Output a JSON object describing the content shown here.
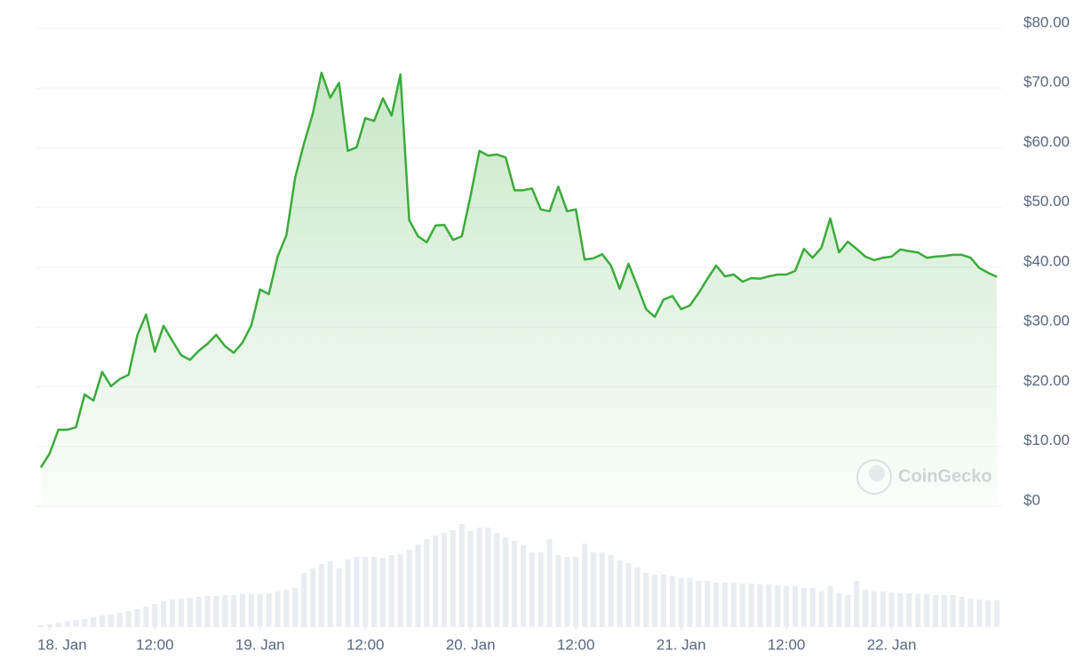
{
  "chart_data": {
    "type": "line",
    "watermark": "CoinGecko",
    "x": [
      -1,
      0,
      1,
      2,
      3,
      4,
      5,
      6,
      7,
      8,
      9,
      10,
      11,
      12,
      13,
      14,
      15,
      16,
      17,
      18,
      19,
      20,
      21,
      22,
      23,
      24,
      25,
      26,
      27,
      28,
      29,
      30,
      31,
      32,
      33,
      34,
      35,
      36,
      37,
      38,
      39,
      40,
      41,
      42,
      43,
      44,
      45,
      46,
      47,
      48,
      49,
      50,
      51,
      52,
      53,
      54,
      55,
      56,
      57,
      58,
      59,
      60,
      61,
      62,
      63,
      64,
      65,
      66,
      67,
      68,
      69,
      70,
      71,
      72,
      73,
      74,
      75,
      76,
      77,
      78,
      79,
      80,
      81,
      82,
      83,
      84,
      85,
      86,
      87,
      88,
      89,
      90,
      91,
      92,
      93,
      94,
      95,
      96,
      97,
      98,
      99,
      100,
      101,
      102,
      103,
      104,
      105,
      106,
      107,
      108
    ],
    "series": [
      {
        "name": "Price",
        "color": "#3bab3b",
        "values": [
          6.5,
          8.8,
          12.8,
          12.8,
          13.2,
          18.7,
          17.7,
          22.5,
          20.1,
          21.3,
          22.0,
          28.6,
          32.1,
          25.9,
          30.2,
          27.7,
          25.3,
          24.5,
          26.0,
          27.2,
          28.7,
          26.8,
          25.7,
          27.4,
          30.3,
          36.3,
          35.5,
          41.8,
          45.4,
          55.0,
          60.7,
          65.7,
          72.6,
          68.4,
          70.9,
          59.5,
          60.1,
          65.0,
          64.5,
          68.3,
          65.4,
          72.3,
          47.9,
          45.2,
          44.2,
          47.0,
          47.1,
          44.6,
          45.2,
          52.0,
          59.5,
          58.7,
          58.9,
          58.4,
          52.9,
          52.9,
          53.2,
          49.7,
          49.4,
          53.5,
          49.4,
          49.7,
          41.3,
          41.5,
          42.2,
          40.3,
          36.4,
          40.6,
          36.9,
          33.0,
          31.7,
          34.6,
          35.2,
          33.0,
          33.6,
          35.7,
          38.1,
          40.3,
          38.5,
          38.8,
          37.6,
          38.2,
          38.1,
          38.5,
          38.8,
          38.8,
          39.4,
          43.1,
          41.6,
          43.3,
          48.2,
          42.5,
          44.3,
          43.1,
          41.8,
          41.2,
          41.6,
          41.8,
          43.0,
          42.7,
          42.5,
          41.6,
          41.8,
          41.9,
          42.1,
          42.1,
          41.6,
          39.9,
          39.1,
          38.4
        ]
      },
      {
        "name": "Volume",
        "color": "#e9ecf0",
        "axis": "volume",
        "values": [
          2,
          3,
          5,
          7,
          8,
          9,
          11,
          13,
          14,
          16,
          18,
          20,
          23,
          26,
          29,
          31,
          32,
          33,
          34,
          35,
          35,
          36,
          36,
          37,
          37,
          37,
          38,
          40,
          42,
          44,
          61,
          66,
          71,
          74,
          66,
          76,
          79,
          79,
          79,
          78,
          81,
          82,
          87,
          93,
          99,
          103,
          106,
          109,
          116,
          108,
          112,
          112,
          106,
          101,
          97,
          92,
          84,
          84,
          99,
          81,
          79,
          79,
          94,
          84,
          84,
          81,
          75,
          72,
          67,
          61,
          59,
          59,
          57,
          55,
          55,
          52,
          52,
          50,
          50,
          50,
          49,
          49,
          48,
          48,
          47,
          46,
          46,
          44,
          44,
          40,
          46,
          38,
          36,
          52,
          42,
          40,
          40,
          39,
          38,
          38,
          37,
          37,
          36,
          36,
          36,
          34,
          32,
          31,
          30,
          30
        ]
      }
    ],
    "xlim": [
      -1.6,
      108.6
    ],
    "xticks": [
      {
        "value": 0,
        "label": "18. Jan"
      },
      {
        "value": 12,
        "label": "12:00"
      },
      {
        "value": 24,
        "label": "19. Jan"
      },
      {
        "value": 36,
        "label": "12:00"
      },
      {
        "value": 48,
        "label": "20. Jan"
      },
      {
        "value": 60,
        "label": "12:00"
      },
      {
        "value": 72,
        "label": "21. Jan"
      },
      {
        "value": 84,
        "label": "12:00"
      },
      {
        "value": 96,
        "label": "22. Jan"
      }
    ],
    "ylim": [
      0,
      80
    ],
    "yticks": [
      {
        "value": 0,
        "label": "$0"
      },
      {
        "value": 10,
        "label": "$10.00"
      },
      {
        "value": 20,
        "label": "$20.00"
      },
      {
        "value": 30,
        "label": "$30.00"
      },
      {
        "value": 40,
        "label": "$40.00"
      },
      {
        "value": 50,
        "label": "$50.00"
      },
      {
        "value": 60,
        "label": "$60.00"
      },
      {
        "value": 70,
        "label": "$70.00"
      },
      {
        "value": 80,
        "label": "$80.00"
      }
    ],
    "volume_ylim": [
      0,
      120
    ],
    "grid": true
  }
}
